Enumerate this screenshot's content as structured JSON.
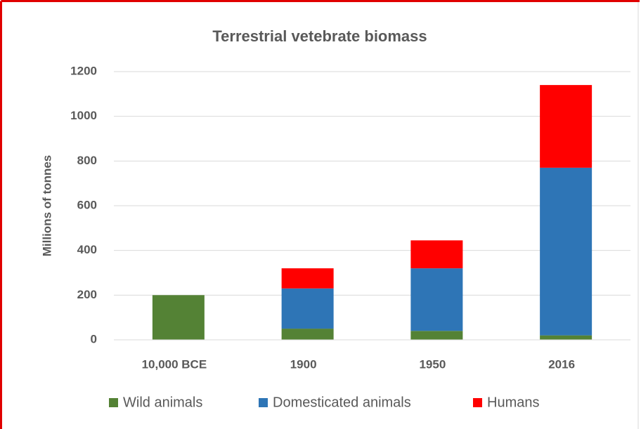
{
  "chart_data": {
    "type": "stacked_bar",
    "title": "Terrestrial vetebrate biomass",
    "y_label": "Millions of tonnes",
    "categories": [
      "10,000 BCE",
      "1900",
      "1950",
      "2016"
    ],
    "series": [
      {
        "name": "Wild animals",
        "color": "#548235",
        "values": [
          200,
          50,
          40,
          20
        ]
      },
      {
        "name": "Domesticated animals",
        "color": "#2e75b6",
        "values": [
          0,
          180,
          280,
          750
        ]
      },
      {
        "name": "Humans",
        "color": "#ff0000",
        "values": [
          0,
          90,
          125,
          370
        ]
      }
    ],
    "ylim": [
      0,
      1200
    ],
    "yticks": [
      0,
      200,
      400,
      600,
      800,
      1000,
      1200
    ],
    "grid": true,
    "legend": "bottom"
  }
}
